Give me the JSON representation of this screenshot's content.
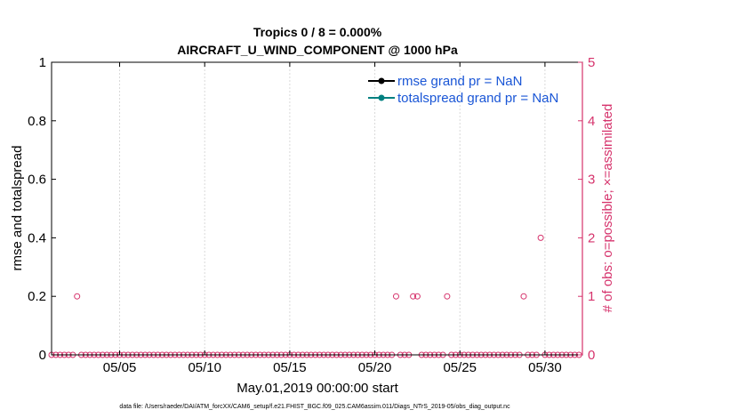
{
  "chart_data": {
    "type": "scatter",
    "title": "Tropics 0 / 8 = 0.000%",
    "subtitle": "AIRCRAFT_U_WIND_COMPONENT @ 1000 hPa",
    "xlabel": "May.01,2019 00:00:00 start",
    "ylabel_left": "rmse and totalspread",
    "ylabel_right": "# of obs: o=possible; ×=assimilated",
    "xlim": [
      1,
      32.2
    ],
    "ylim_left": [
      0,
      1
    ],
    "ylim_right": [
      0,
      5
    ],
    "x_ticks": [
      5,
      10,
      15,
      20,
      25,
      30
    ],
    "x_tick_labels": [
      "05/05",
      "05/10",
      "05/15",
      "05/20",
      "05/25",
      "05/30"
    ],
    "y_left_ticks": [
      "0",
      "0.2",
      "0.4",
      "0.6",
      "0.8",
      "1"
    ],
    "y_right_ticks": [
      "0",
      "1",
      "2",
      "3",
      "4",
      "5"
    ],
    "legend_position": "top-right",
    "series": [
      {
        "name": "rmse grand pr = NaN",
        "color": "#000000",
        "values": []
      },
      {
        "name": "totalspread grand pr = NaN",
        "color": "#008080",
        "values": []
      }
    ],
    "obs_possible": {
      "color": "#d6336c",
      "x": [
        2.5,
        21.25,
        22.25,
        22.5,
        24.25,
        28.75,
        29.75
      ],
      "y": [
        1,
        1,
        1,
        1,
        1,
        1,
        2
      ]
    },
    "obs_zero_spacing_days": 0.25
  },
  "footer": {
    "data_file": "data file: /Users/raeder/DAI/ATM_forcXX/CAM6_setup/f.e21.FHIST_BGC.f09_025.CAM6assim.011/Diags_NTrS_2019-05/obs_diag_output.nc"
  },
  "colors": {
    "axis": "#000000",
    "right_axis": "#d6336c",
    "grid": "#d9d9d9",
    "legend_text": "#1a56d6"
  }
}
